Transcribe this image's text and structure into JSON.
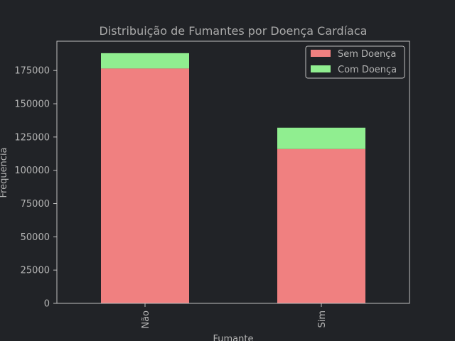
{
  "chart_data": {
    "type": "bar",
    "stacked": true,
    "title": "Distribuição de Fumantes por Doença Cardíaca",
    "xlabel": "Fumante",
    "ylabel": "Frequencia",
    "categories": [
      "Não",
      "Sim"
    ],
    "series": [
      {
        "name": "Sem Doença",
        "values": [
          176500,
          116000
        ],
        "color": "#f08080"
      },
      {
        "name": "Com Doença",
        "values": [
          11500,
          16000
        ],
        "color": "#90ee90"
      }
    ],
    "ylim": [
      0,
      197000
    ],
    "yticks": [
      0,
      25000,
      50000,
      75000,
      100000,
      125000,
      150000,
      175000
    ],
    "legend_position": "top-right",
    "grid": false
  },
  "colors": {
    "background": "#212327",
    "text": "#b4b4b4",
    "title": "#a9a9a9",
    "axis": "#bfbfbf"
  }
}
